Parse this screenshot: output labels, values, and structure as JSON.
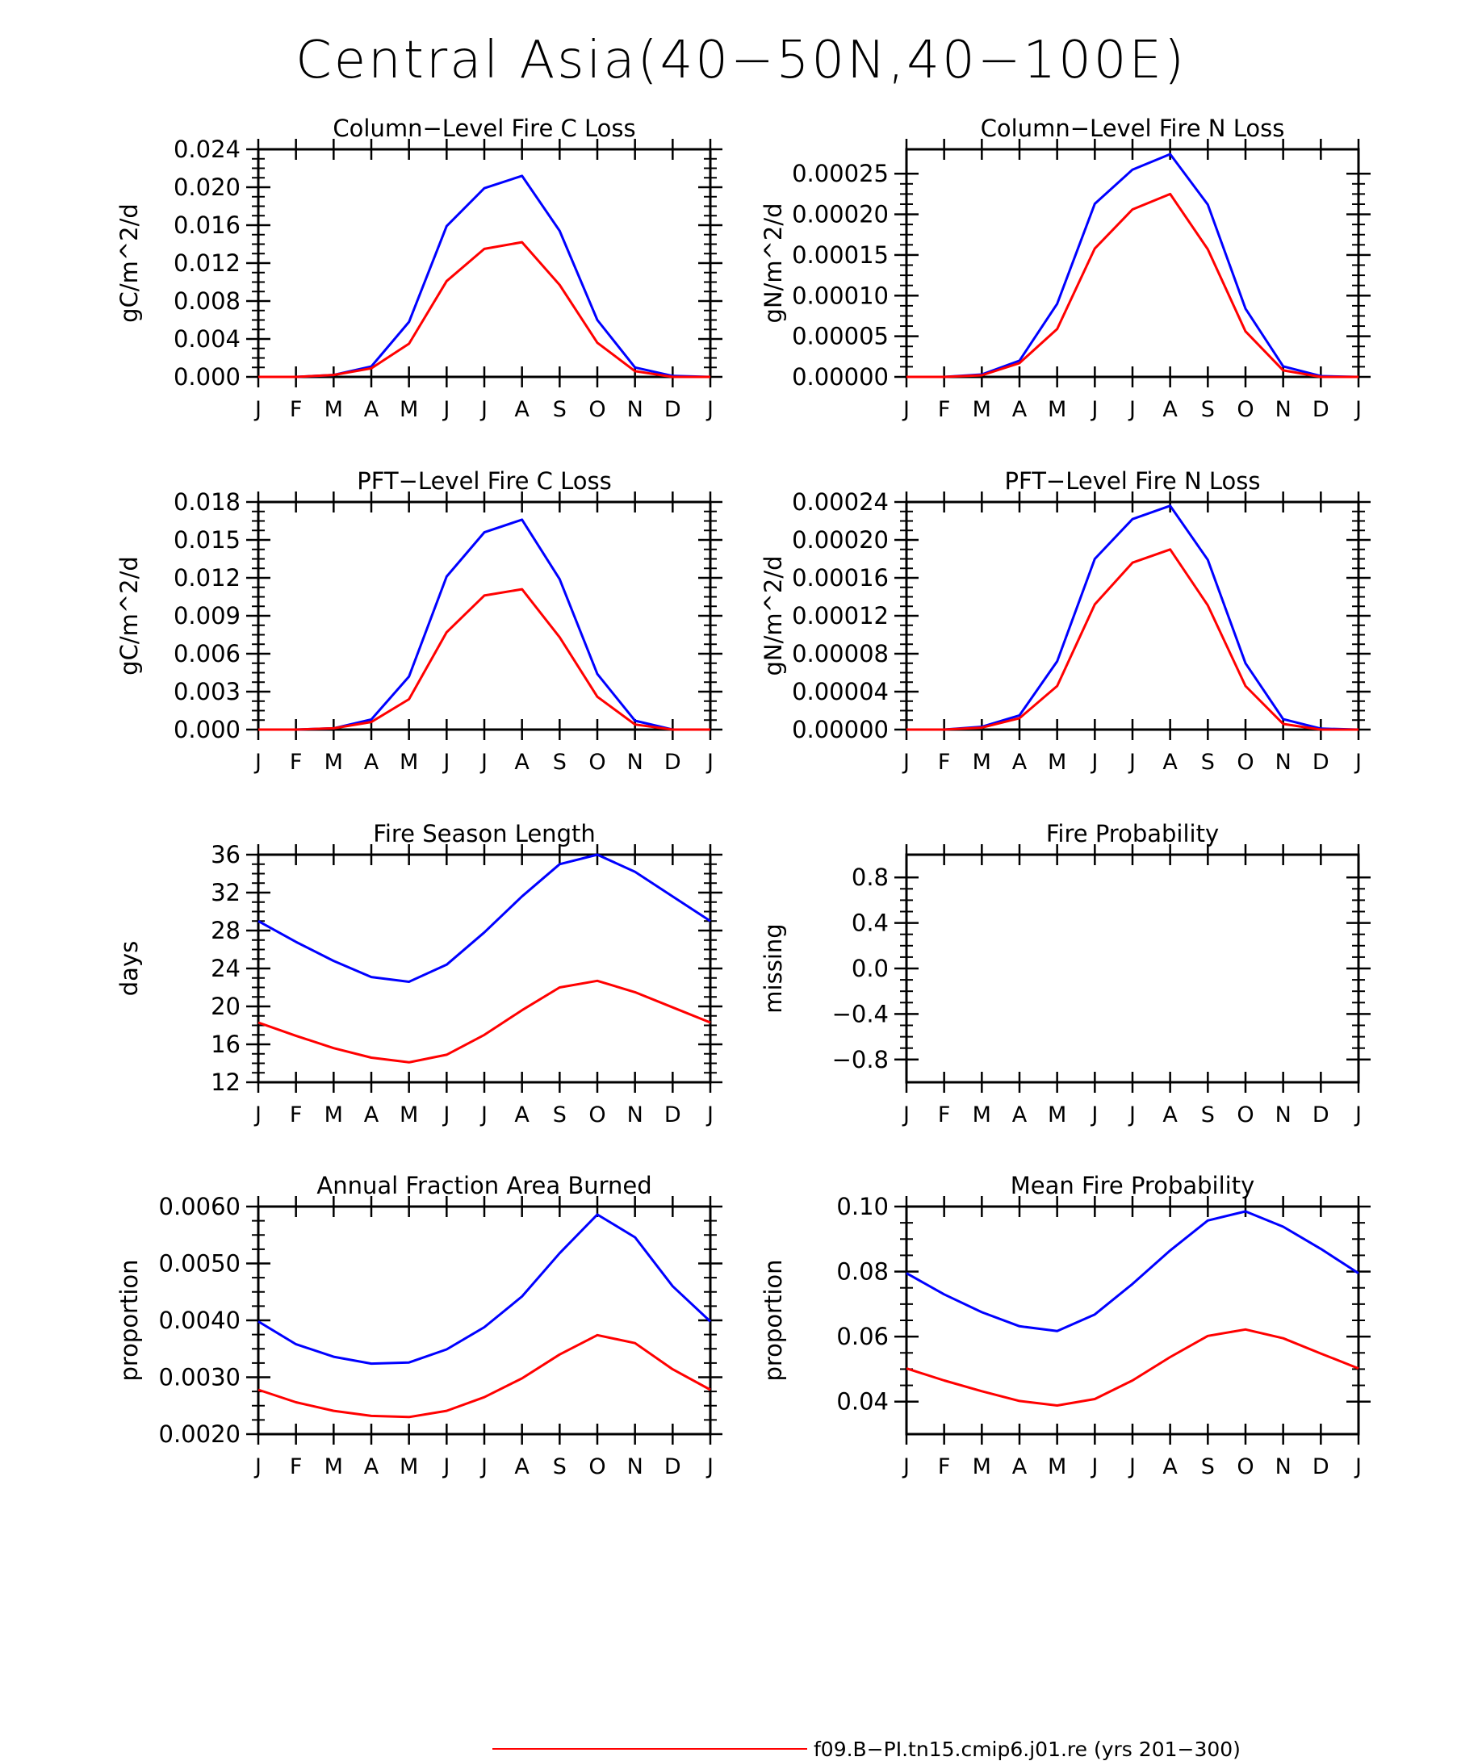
{
  "figure_title": "Central Asia(40−50N,40−100E)",
  "colors": {
    "series_red": "#ff0000",
    "series_blue": "#0000ff",
    "axis": "#000000"
  },
  "legend": [
    {
      "label": "f09.B−PI.tn15.cmip6.j01.re (yrs 201−300)",
      "color": "#ff0000"
    }
  ],
  "chart_data": [
    {
      "type": "line",
      "title": "Column−Level Fire C Loss",
      "ylabel": "gC/m^2/d",
      "categories": [
        "J",
        "F",
        "M",
        "A",
        "M",
        "J",
        "J",
        "A",
        "S",
        "O",
        "N",
        "D",
        "J"
      ],
      "ylim": [
        0,
        0.024
      ],
      "yticks": [
        0,
        0.004,
        0.008,
        0.012,
        0.016,
        0.02,
        0.024
      ],
      "ytick_labels": [
        "0.000",
        "0.004",
        "0.008",
        "0.012",
        "0.016",
        "0.020",
        "0.024"
      ],
      "series": [
        {
          "color": "#0000ff",
          "values": [
            0.0,
            0.0,
            0.0002,
            0.0011,
            0.0058,
            0.0159,
            0.0199,
            0.0212,
            0.0154,
            0.006,
            0.001,
            0.0001,
            0.0
          ]
        },
        {
          "color": "#ff0000",
          "values": [
            0.0,
            0.0,
            0.0002,
            0.0009,
            0.0035,
            0.0101,
            0.0135,
            0.0142,
            0.0097,
            0.0036,
            0.0006,
            0.0,
            0.0
          ]
        }
      ]
    },
    {
      "type": "line",
      "title": "Column−Level Fire N Loss",
      "ylabel": "gN/m^2/d",
      "categories": [
        "J",
        "F",
        "M",
        "A",
        "M",
        "J",
        "J",
        "A",
        "S",
        "O",
        "N",
        "D",
        "J"
      ],
      "ylim": [
        0,
        0.00028
      ],
      "yticks": [
        0,
        5e-05,
        0.0001,
        0.00015,
        0.0002,
        0.00025
      ],
      "ytick_labels": [
        "0.00000",
        "0.00005",
        "0.00010",
        "0.00015",
        "0.00020",
        "0.00025"
      ],
      "series": [
        {
          "color": "#0000ff",
          "values": [
            0.0,
            0.0,
            3e-06,
            2e-05,
            9e-05,
            0.000213,
            0.000255,
            0.000274,
            0.000212,
            8.4e-05,
            1.3e-05,
            1e-06,
            0.0
          ]
        },
        {
          "color": "#ff0000",
          "values": [
            0.0,
            0.0,
            2e-06,
            1.7e-05,
            5.9e-05,
            0.000158,
            0.000206,
            0.000225,
            0.000157,
            5.6e-05,
            8e-06,
            0.0,
            0.0
          ]
        }
      ]
    },
    {
      "type": "line",
      "title": "PFT−Level Fire C Loss",
      "ylabel": "gC/m^2/d",
      "categories": [
        "J",
        "F",
        "M",
        "A",
        "M",
        "J",
        "J",
        "A",
        "S",
        "O",
        "N",
        "D",
        "J"
      ],
      "ylim": [
        0,
        0.018
      ],
      "yticks": [
        0,
        0.003,
        0.006,
        0.009,
        0.012,
        0.015,
        0.018
      ],
      "ytick_labels": [
        "0.000",
        "0.003",
        "0.006",
        "0.009",
        "0.012",
        "0.015",
        "0.018"
      ],
      "series": [
        {
          "color": "#0000ff",
          "values": [
            0.0,
            0.0,
            0.0001,
            0.0008,
            0.0042,
            0.0121,
            0.0156,
            0.0166,
            0.0119,
            0.0044,
            0.0007,
            0.0,
            0.0
          ]
        },
        {
          "color": "#ff0000",
          "values": [
            0.0,
            0.0,
            0.0001,
            0.0006,
            0.0024,
            0.0077,
            0.0106,
            0.0111,
            0.0073,
            0.0026,
            0.0004,
            0.0,
            0.0
          ]
        }
      ]
    },
    {
      "type": "line",
      "title": "PFT−Level Fire N Loss",
      "ylabel": "gN/m^2/d",
      "categories": [
        "J",
        "F",
        "M",
        "A",
        "M",
        "J",
        "J",
        "A",
        "S",
        "O",
        "N",
        "D",
        "J"
      ],
      "ylim": [
        0,
        0.00024
      ],
      "yticks": [
        0,
        4e-05,
        8e-05,
        0.00012,
        0.00016,
        0.0002,
        0.00024
      ],
      "ytick_labels": [
        "0.00000",
        "0.00004",
        "0.00008",
        "0.00012",
        "0.00016",
        "0.00020",
        "0.00024"
      ],
      "series": [
        {
          "color": "#0000ff",
          "values": [
            0.0,
            0.0,
            3e-06,
            1.5e-05,
            7.2e-05,
            0.00018,
            0.000222,
            0.000236,
            0.000179,
            7e-05,
            1.1e-05,
            1e-06,
            0.0
          ]
        },
        {
          "color": "#ff0000",
          "values": [
            0.0,
            0.0,
            2e-06,
            1.2e-05,
            4.6e-05,
            0.000132,
            0.000176,
            0.00019,
            0.000131,
            4.6e-05,
            6e-06,
            0.0,
            0.0
          ]
        }
      ]
    },
    {
      "type": "line",
      "title": "Fire Season Length",
      "ylabel": "days",
      "categories": [
        "J",
        "F",
        "M",
        "A",
        "M",
        "J",
        "J",
        "A",
        "S",
        "O",
        "N",
        "D",
        "J"
      ],
      "ylim": [
        12,
        36
      ],
      "yticks": [
        12,
        16,
        20,
        24,
        28,
        32,
        36
      ],
      "ytick_labels": [
        "12",
        "16",
        "20",
        "24",
        "28",
        "32",
        "36"
      ],
      "series": [
        {
          "color": "#0000ff",
          "values": [
            29.0,
            26.8,
            24.8,
            23.1,
            22.6,
            24.4,
            27.8,
            31.6,
            35.0,
            36.0,
            34.2,
            31.6,
            29.0
          ]
        },
        {
          "color": "#ff0000",
          "values": [
            18.3,
            16.9,
            15.6,
            14.6,
            14.1,
            14.9,
            17.0,
            19.6,
            22.0,
            22.7,
            21.5,
            19.9,
            18.3
          ]
        }
      ]
    },
    {
      "type": "line",
      "title": "Fire Probability",
      "ylabel": "missing",
      "categories": [
        "J",
        "F",
        "M",
        "A",
        "M",
        "J",
        "J",
        "A",
        "S",
        "O",
        "N",
        "D",
        "J"
      ],
      "ylim": [
        -1.0,
        1.0
      ],
      "yticks": [
        -0.8,
        -0.4,
        0.0,
        0.4,
        0.8
      ],
      "ytick_labels": [
        "−0.8",
        "−0.4",
        "0.0",
        "0.4",
        "0.8"
      ],
      "series": []
    },
    {
      "type": "line",
      "title": "Annual Fraction Area Burned",
      "ylabel": "proportion",
      "categories": [
        "J",
        "F",
        "M",
        "A",
        "M",
        "J",
        "J",
        "A",
        "S",
        "O",
        "N",
        "D",
        "J"
      ],
      "ylim": [
        0.002,
        0.006
      ],
      "yticks": [
        0.002,
        0.003,
        0.004,
        0.005,
        0.006
      ],
      "ytick_labels": [
        "0.0020",
        "0.0030",
        "0.0040",
        "0.0050",
        "0.0060"
      ],
      "series": [
        {
          "color": "#0000ff",
          "values": [
            0.00398,
            0.00358,
            0.00336,
            0.00324,
            0.00326,
            0.00349,
            0.00388,
            0.00442,
            0.00518,
            0.00586,
            0.00546,
            0.0046,
            0.00398
          ]
        },
        {
          "color": "#ff0000",
          "values": [
            0.00278,
            0.00256,
            0.00241,
            0.00232,
            0.0023,
            0.00241,
            0.00265,
            0.00298,
            0.0034,
            0.00374,
            0.0036,
            0.00314,
            0.00278
          ]
        }
      ]
    },
    {
      "type": "line",
      "title": "Mean Fire Probability",
      "ylabel": "proportion",
      "categories": [
        "J",
        "F",
        "M",
        "A",
        "M",
        "J",
        "J",
        "A",
        "S",
        "O",
        "N",
        "D",
        "J"
      ],
      "ylim": [
        0.03,
        0.1
      ],
      "yticks": [
        0.04,
        0.06,
        0.08,
        0.1
      ],
      "ytick_labels": [
        "0.04",
        "0.06",
        "0.08",
        "0.10"
      ],
      "series": [
        {
          "color": "#0000ff",
          "values": [
            0.0795,
            0.073,
            0.0675,
            0.0632,
            0.0617,
            0.0668,
            0.0762,
            0.0865,
            0.0957,
            0.0985,
            0.0938,
            0.087,
            0.0795
          ]
        },
        {
          "color": "#ff0000",
          "values": [
            0.0502,
            0.0465,
            0.0432,
            0.0402,
            0.0388,
            0.0408,
            0.0465,
            0.0537,
            0.0602,
            0.0622,
            0.0595,
            0.0548,
            0.0502
          ]
        }
      ]
    }
  ]
}
